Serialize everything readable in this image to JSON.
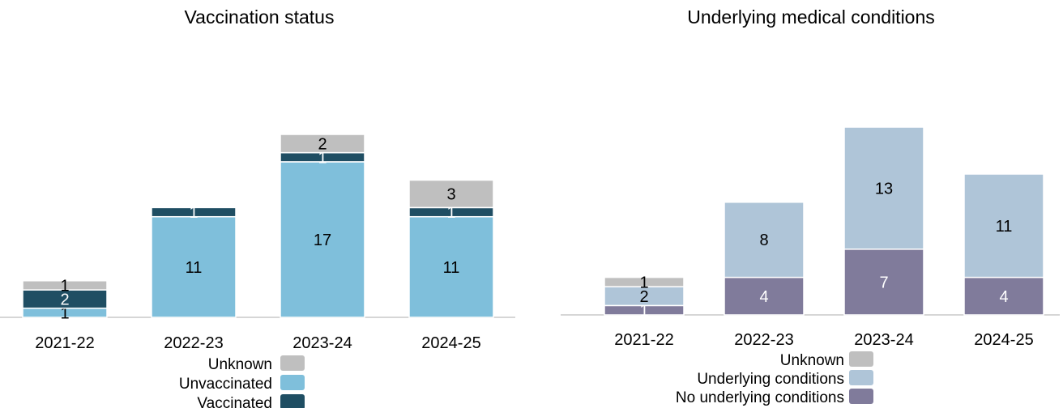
{
  "chart_data": [
    {
      "type": "bar",
      "stacked": true,
      "title": "Vaccination status",
      "categories": [
        "2021-22",
        "2022-23",
        "2023-24",
        "2024-25"
      ],
      "series": [
        {
          "name": "Unvaccinated",
          "color": "#7fbfdb",
          "values": [
            1,
            11,
            17,
            11
          ],
          "label_color": "#000000"
        },
        {
          "name": "Vaccinated",
          "color": "#1f4e63",
          "values": [
            2,
            1,
            1,
            1
          ],
          "label_color": "#ffffff"
        },
        {
          "name": "Unknown",
          "color": "#bfbfbf",
          "values": [
            1,
            0,
            2,
            3
          ],
          "label_color": "#000000"
        }
      ],
      "legend": {
        "placement": "bottom",
        "order": [
          "Unknown",
          "Unvaccinated",
          "Vaccinated"
        ]
      },
      "grid": false
    },
    {
      "type": "bar",
      "stacked": true,
      "title": "Underlying medical conditions",
      "categories": [
        "2021-22",
        "2022-23",
        "2023-24",
        "2024-25"
      ],
      "series": [
        {
          "name": "No underlying conditions",
          "color": "#807b9b",
          "values": [
            1,
            4,
            7,
            4
          ],
          "label_color": "#ffffff"
        },
        {
          "name": "Underlying conditions",
          "color": "#afc5d8",
          "values": [
            2,
            8,
            13,
            11
          ],
          "label_color": "#000000"
        },
        {
          "name": "Unknown",
          "color": "#bfbfbf",
          "values": [
            1,
            0,
            0,
            0
          ],
          "label_color": "#000000"
        }
      ],
      "legend": {
        "placement": "bottom",
        "order": [
          "Unknown",
          "Underlying conditions",
          "No underlying conditions"
        ]
      },
      "grid": false
    }
  ]
}
